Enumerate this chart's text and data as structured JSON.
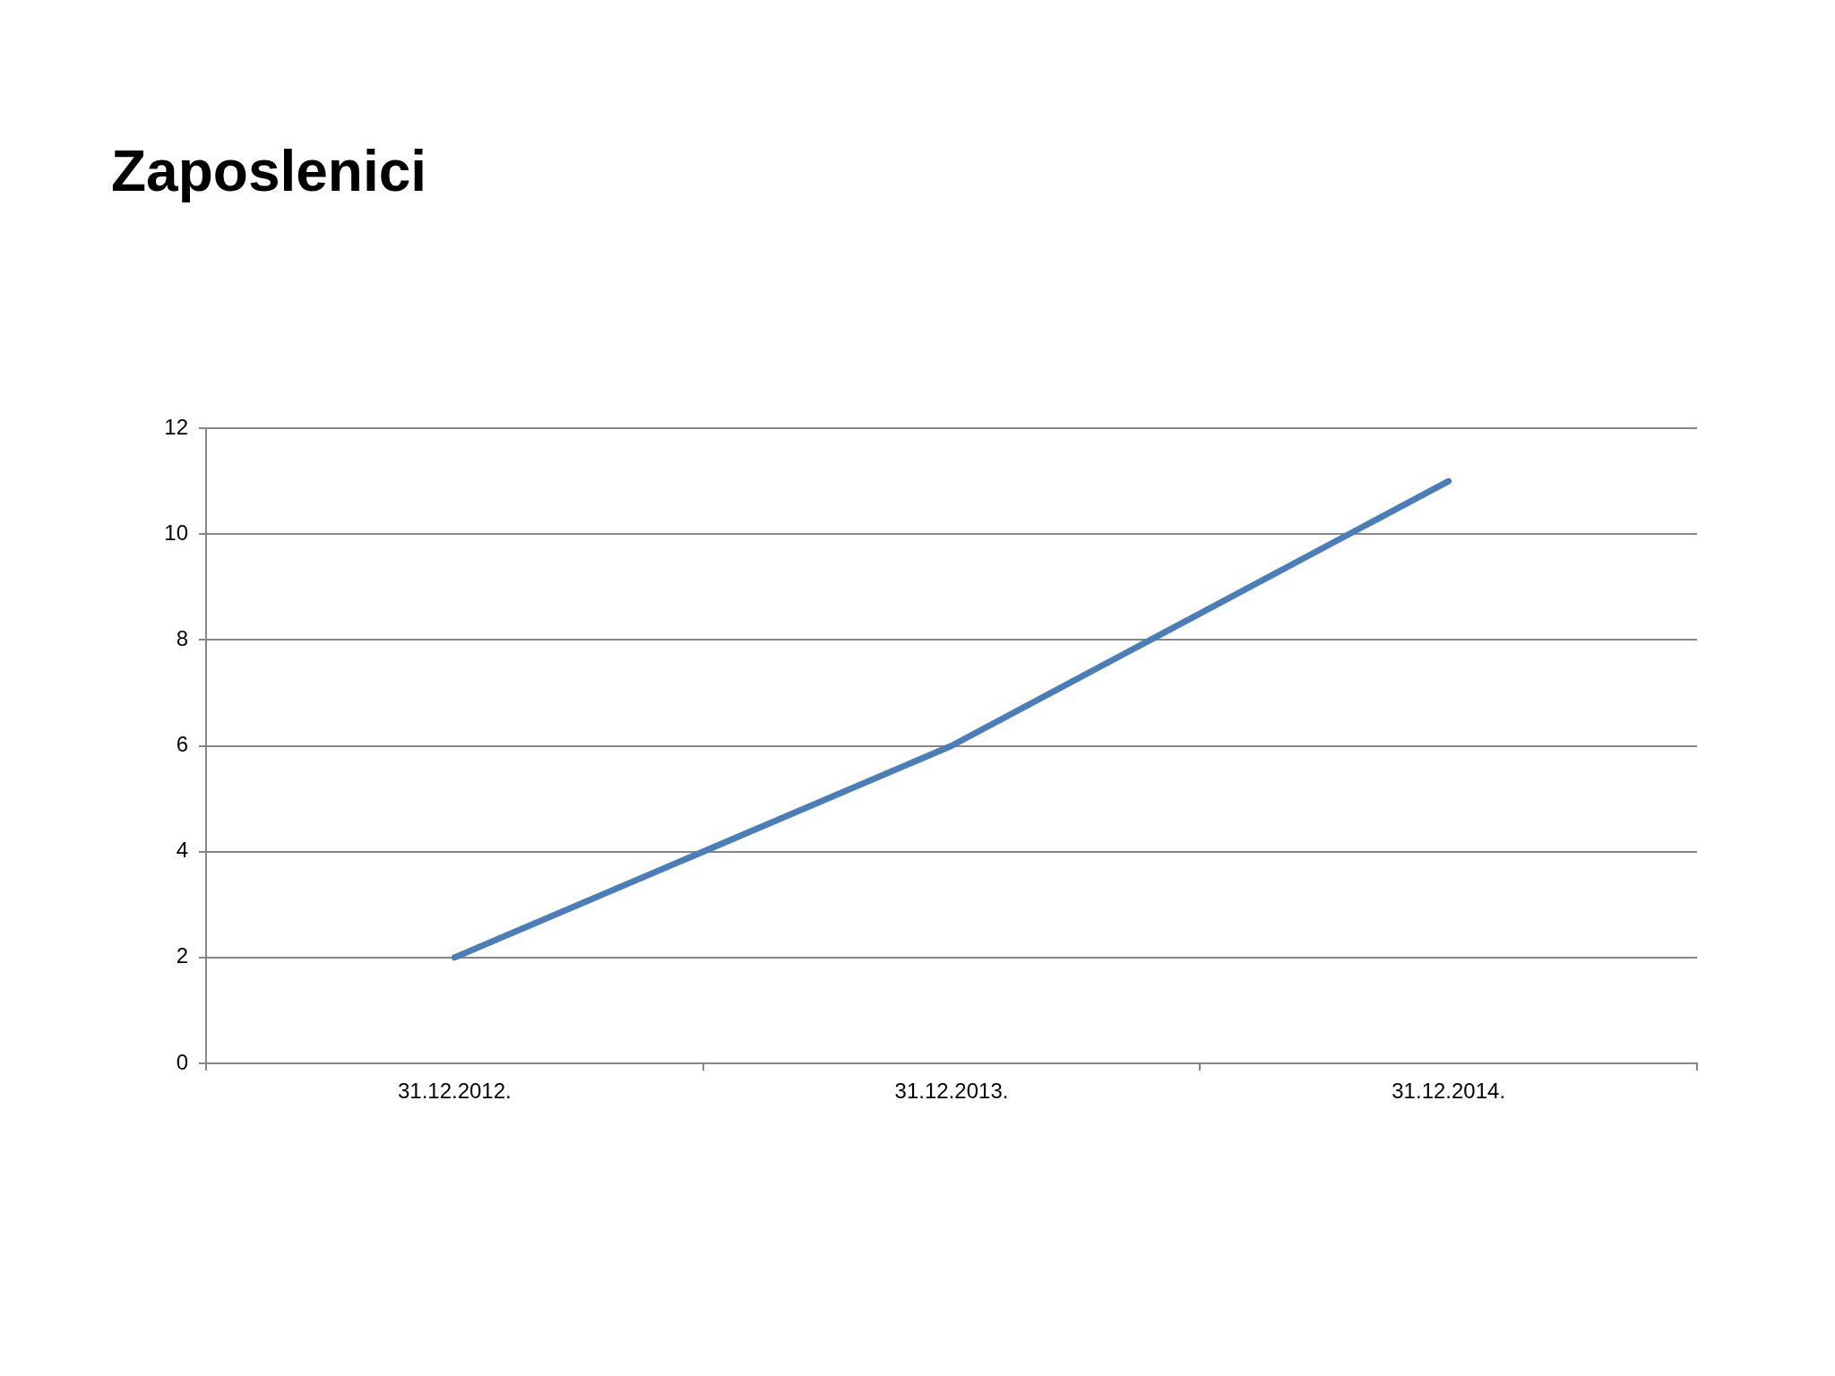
{
  "chart_data": {
    "type": "line",
    "title": "Zaposlenici",
    "categories": [
      "31.12.2012.",
      "31.12.2013.",
      "31.12.2014."
    ],
    "series": [
      {
        "color": "#4a7ebb",
        "values": [
          2,
          6,
          11
        ]
      }
    ],
    "ylim": [
      0,
      12
    ],
    "yticks": [
      0,
      2,
      4,
      6,
      8,
      10,
      12
    ],
    "grid": "y",
    "marker": "none",
    "line_style": "solid"
  }
}
